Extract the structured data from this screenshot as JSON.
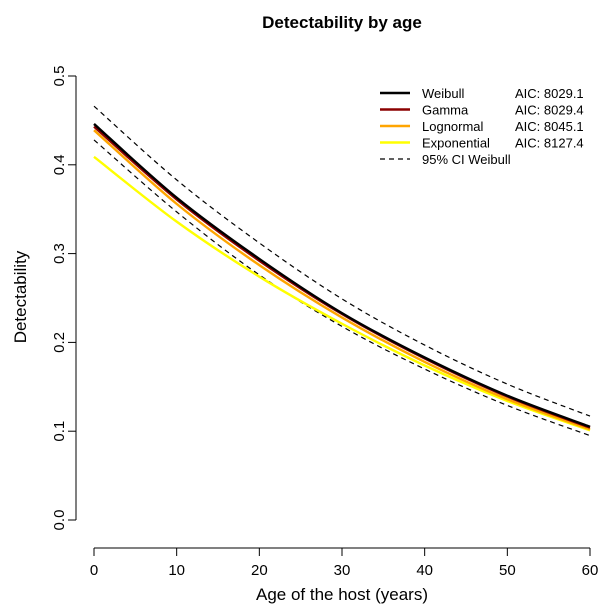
{
  "chart_data": {
    "type": "line",
    "title": "Detectability by age",
    "xlabel": "Age of the host (years)",
    "ylabel": "Detectability",
    "xlim": [
      0,
      60
    ],
    "ylim": [
      0,
      0.5
    ],
    "xticks": [
      0,
      10,
      20,
      30,
      40,
      50,
      60
    ],
    "yticks": [
      0.0,
      0.1,
      0.2,
      0.3,
      0.4,
      0.5
    ],
    "xtick_labels": [
      "0",
      "10",
      "20",
      "30",
      "40",
      "50",
      "60"
    ],
    "ytick_labels": [
      "0.0",
      "0.1",
      "0.2",
      "0.3",
      "0.4",
      "0.5"
    ],
    "grid": false,
    "legend_position": "top-right",
    "series": [
      {
        "name": "Weibull",
        "aic": "AIC: 8029.1",
        "color": "#000000",
        "style": "solid",
        "x": [
          0,
          10,
          20,
          30,
          40,
          50,
          60
        ],
        "y": [
          0.446,
          0.363,
          0.294,
          0.233,
          0.183,
          0.14,
          0.105
        ]
      },
      {
        "name": "Gamma",
        "aic": "AIC: 8029.4",
        "color": "#8b0000",
        "style": "solid",
        "x": [
          0,
          10,
          20,
          30,
          40,
          50,
          60
        ],
        "y": [
          0.443,
          0.361,
          0.292,
          0.232,
          0.182,
          0.139,
          0.104
        ]
      },
      {
        "name": "Lognormal",
        "aic": "AIC: 8045.1",
        "color": "#ffa500",
        "style": "solid",
        "x": [
          0,
          10,
          20,
          30,
          40,
          50,
          60
        ],
        "y": [
          0.439,
          0.356,
          0.287,
          0.228,
          0.178,
          0.136,
          0.102
        ]
      },
      {
        "name": "Exponential",
        "aic": "AIC: 8127.4",
        "color": "#ffff00",
        "style": "solid",
        "x": [
          0,
          10,
          20,
          30,
          40,
          50,
          60
        ],
        "y": [
          0.409,
          0.336,
          0.274,
          0.221,
          0.174,
          0.134,
          0.101
        ]
      },
      {
        "name": "95% CI Weibull",
        "aic": "",
        "color": "#000000",
        "style": "dashed",
        "x": [
          0,
          10,
          20,
          30,
          40,
          50,
          60
        ],
        "y": [
          0.466,
          0.383,
          0.312,
          0.249,
          0.197,
          0.153,
          0.117
        ]
      },
      {
        "name": "",
        "aic": "",
        "color": "#000000",
        "style": "dashed",
        "x": [
          0,
          10,
          20,
          30,
          40,
          50,
          60
        ],
        "y": [
          0.428,
          0.347,
          0.276,
          0.218,
          0.17,
          0.129,
          0.095
        ]
      }
    ]
  }
}
